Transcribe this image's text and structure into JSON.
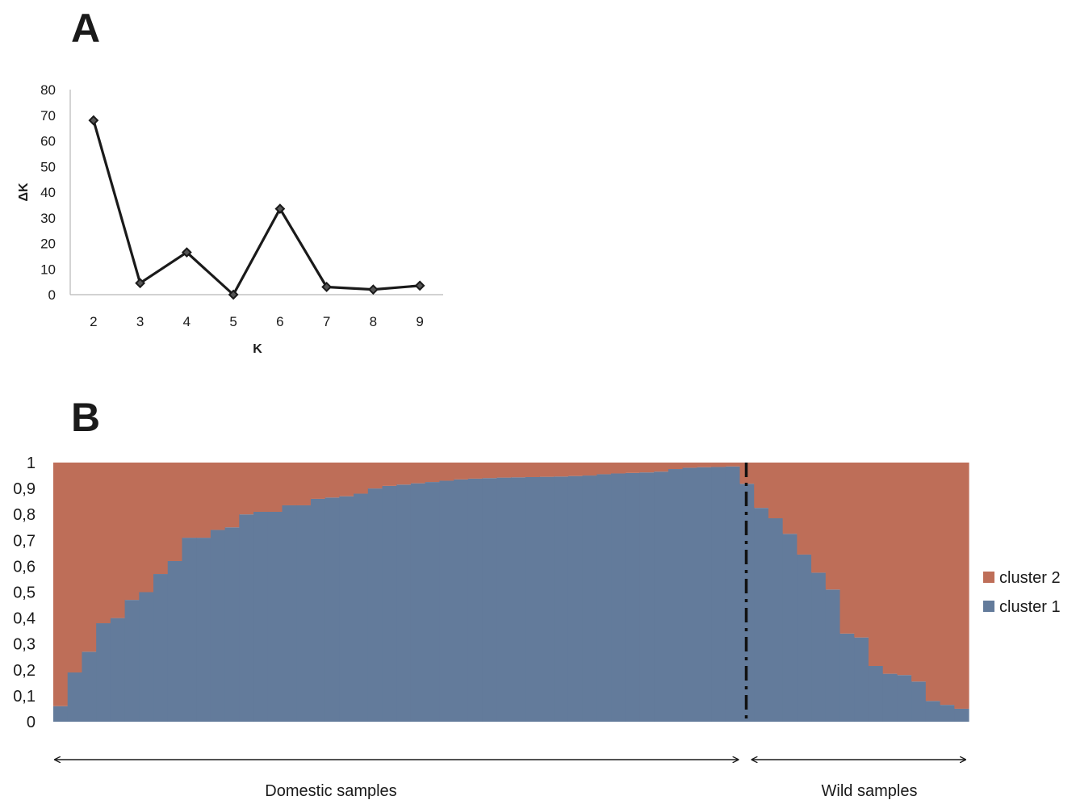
{
  "chart_data": [
    {
      "panel": "A",
      "type": "line",
      "xlabel": "K",
      "ylabel": "ΔK",
      "x": [
        2,
        3,
        4,
        5,
        6,
        7,
        8,
        9
      ],
      "values": [
        68,
        4.5,
        16.5,
        0,
        33.5,
        3,
        2,
        3.5
      ],
      "ylim": [
        0,
        80
      ],
      "yticks": [
        0,
        10,
        20,
        30,
        40,
        50,
        60,
        70,
        80
      ],
      "grid": false,
      "line_color": "#1a1a1a"
    },
    {
      "panel": "B",
      "type": "bar",
      "stacked": true,
      "ylim": [
        0,
        1
      ],
      "yticks": [
        "0",
        "0,1",
        "0,2",
        "0,3",
        "0,4",
        "0,5",
        "0,6",
        "0,7",
        "0,8",
        "0,9",
        "1"
      ],
      "grid": false,
      "legend_position": "right",
      "series": [
        {
          "name": "cluster 1",
          "color": "#637b9b",
          "values": [
            0.06,
            0.19,
            0.27,
            0.38,
            0.4,
            0.47,
            0.5,
            0.57,
            0.62,
            0.71,
            0.71,
            0.74,
            0.75,
            0.8,
            0.81,
            0.81,
            0.835,
            0.835,
            0.86,
            0.865,
            0.87,
            0.88,
            0.9,
            0.91,
            0.915,
            0.92,
            0.925,
            0.93,
            0.935,
            0.938,
            0.94,
            0.942,
            0.943,
            0.944,
            0.945,
            0.946,
            0.948,
            0.95,
            0.955,
            0.958,
            0.96,
            0.962,
            0.965,
            0.975,
            0.98,
            0.982,
            0.983,
            0.985,
            0.918,
            0.825,
            0.785,
            0.725,
            0.645,
            0.575,
            0.51,
            0.34,
            0.325,
            0.215,
            0.185,
            0.18,
            0.155,
            0.08,
            0.065,
            0.05
          ]
        },
        {
          "name": "cluster 2",
          "color": "#be6e58",
          "values": [
            0.94,
            0.81,
            0.73,
            0.62,
            0.6,
            0.53,
            0.5,
            0.43,
            0.38,
            0.29,
            0.29,
            0.26,
            0.25,
            0.2,
            0.19,
            0.19,
            0.165,
            0.165,
            0.14,
            0.135,
            0.13,
            0.12,
            0.1,
            0.09,
            0.085,
            0.08,
            0.075,
            0.07,
            0.065,
            0.062,
            0.06,
            0.058,
            0.057,
            0.056,
            0.055,
            0.054,
            0.052,
            0.05,
            0.045,
            0.042,
            0.04,
            0.038,
            0.035,
            0.025,
            0.02,
            0.018,
            0.017,
            0.015,
            0.082,
            0.175,
            0.215,
            0.275,
            0.355,
            0.425,
            0.49,
            0.66,
            0.675,
            0.785,
            0.815,
            0.82,
            0.845,
            0.92,
            0.935,
            0.95
          ]
        }
      ],
      "domestic_count": 48,
      "wild_count": 16,
      "groups": [
        {
          "label": "Domestic samples"
        },
        {
          "label": "Wild samples"
        }
      ]
    }
  ],
  "panel_labels": {
    "a": "A",
    "b": "B"
  }
}
